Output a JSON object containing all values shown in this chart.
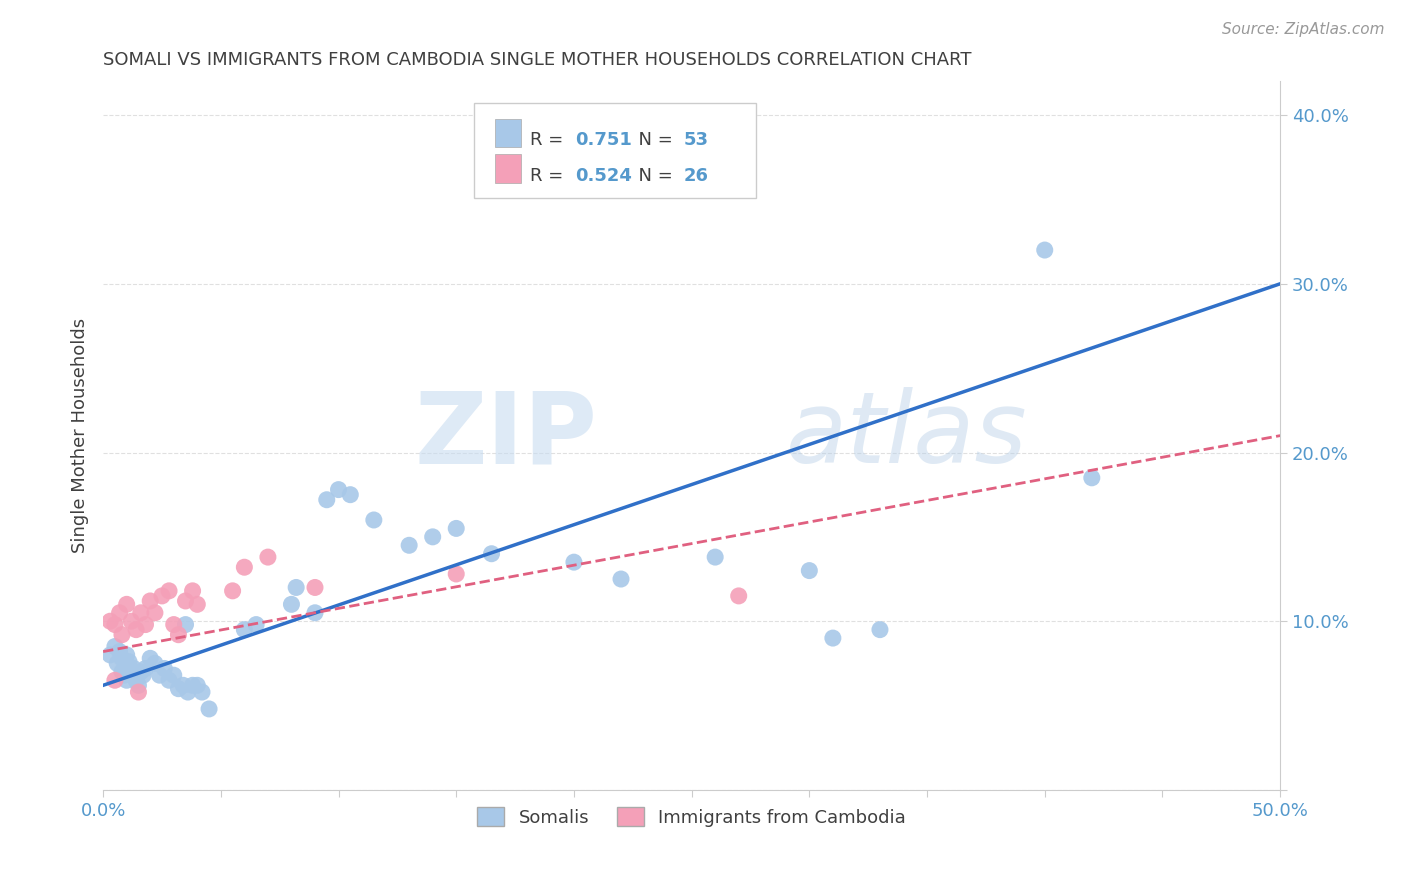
{
  "title": "SOMALI VS IMMIGRANTS FROM CAMBODIA SINGLE MOTHER HOUSEHOLDS CORRELATION CHART",
  "source": "Source: ZipAtlas.com",
  "ylabel": "Single Mother Households",
  "xlim": [
    0.0,
    0.5
  ],
  "ylim": [
    0.0,
    0.42
  ],
  "xticks": [
    0.0,
    0.05,
    0.1,
    0.15,
    0.2,
    0.25,
    0.3,
    0.35,
    0.4,
    0.45,
    0.5
  ],
  "xtick_labels": [
    "0.0%",
    "",
    "",
    "",
    "",
    "",
    "",
    "",
    "",
    "",
    "50.0%"
  ],
  "ytick_positions": [
    0.0,
    0.1,
    0.2,
    0.3,
    0.4
  ],
  "ytick_labels": [
    "",
    "10.0%",
    "20.0%",
    "30.0%",
    "40.0%"
  ],
  "R_somali": 0.751,
  "N_somali": 53,
  "R_cambodia": 0.524,
  "N_cambodia": 26,
  "somali_color": "#a8c8e8",
  "cambodia_color": "#f4a0b8",
  "somali_line_color": "#3070c8",
  "cambodia_line_color": "#e06080",
  "watermark_zip": "ZIP",
  "watermark_atlas": "atlas",
  "somali_points": [
    [
      0.003,
      0.08
    ],
    [
      0.005,
      0.085
    ],
    [
      0.006,
      0.075
    ],
    [
      0.007,
      0.082
    ],
    [
      0.008,
      0.07
    ],
    [
      0.008,
      0.078
    ],
    [
      0.009,
      0.068
    ],
    [
      0.01,
      0.072
    ],
    [
      0.01,
      0.08
    ],
    [
      0.01,
      0.065
    ],
    [
      0.011,
      0.076
    ],
    [
      0.012,
      0.068
    ],
    [
      0.013,
      0.072
    ],
    [
      0.014,
      0.065
    ],
    [
      0.015,
      0.062
    ],
    [
      0.016,
      0.07
    ],
    [
      0.017,
      0.068
    ],
    [
      0.018,
      0.072
    ],
    [
      0.02,
      0.078
    ],
    [
      0.022,
      0.075
    ],
    [
      0.024,
      0.068
    ],
    [
      0.026,
      0.072
    ],
    [
      0.028,
      0.065
    ],
    [
      0.03,
      0.068
    ],
    [
      0.032,
      0.06
    ],
    [
      0.034,
      0.062
    ],
    [
      0.036,
      0.058
    ],
    [
      0.038,
      0.062
    ],
    [
      0.04,
      0.062
    ],
    [
      0.042,
      0.058
    ],
    [
      0.045,
      0.048
    ],
    [
      0.06,
      0.095
    ],
    [
      0.065,
      0.098
    ],
    [
      0.08,
      0.11
    ],
    [
      0.082,
      0.12
    ],
    [
      0.09,
      0.105
    ],
    [
      0.095,
      0.172
    ],
    [
      0.1,
      0.178
    ],
    [
      0.105,
      0.175
    ],
    [
      0.115,
      0.16
    ],
    [
      0.13,
      0.145
    ],
    [
      0.14,
      0.15
    ],
    [
      0.15,
      0.155
    ],
    [
      0.165,
      0.14
    ],
    [
      0.2,
      0.135
    ],
    [
      0.22,
      0.125
    ],
    [
      0.26,
      0.138
    ],
    [
      0.3,
      0.13
    ],
    [
      0.31,
      0.09
    ],
    [
      0.33,
      0.095
    ],
    [
      0.4,
      0.32
    ],
    [
      0.42,
      0.185
    ],
    [
      0.035,
      0.098
    ]
  ],
  "cambodia_points": [
    [
      0.003,
      0.1
    ],
    [
      0.005,
      0.098
    ],
    [
      0.007,
      0.105
    ],
    [
      0.008,
      0.092
    ],
    [
      0.01,
      0.11
    ],
    [
      0.012,
      0.1
    ],
    [
      0.014,
      0.095
    ],
    [
      0.016,
      0.105
    ],
    [
      0.018,
      0.098
    ],
    [
      0.02,
      0.112
    ],
    [
      0.022,
      0.105
    ],
    [
      0.025,
      0.115
    ],
    [
      0.028,
      0.118
    ],
    [
      0.03,
      0.098
    ],
    [
      0.032,
      0.092
    ],
    [
      0.035,
      0.112
    ],
    [
      0.038,
      0.118
    ],
    [
      0.04,
      0.11
    ],
    [
      0.055,
      0.118
    ],
    [
      0.06,
      0.132
    ],
    [
      0.07,
      0.138
    ],
    [
      0.09,
      0.12
    ],
    [
      0.15,
      0.128
    ],
    [
      0.27,
      0.115
    ],
    [
      0.005,
      0.065
    ],
    [
      0.015,
      0.058
    ]
  ],
  "somali_line": [
    0.0,
    0.5,
    0.062,
    0.3
  ],
  "cambodia_line": [
    0.0,
    0.5,
    0.082,
    0.21
  ],
  "background_color": "#ffffff",
  "grid_color": "#dddddd",
  "title_color": "#404040",
  "tick_label_color": "#5599cc"
}
